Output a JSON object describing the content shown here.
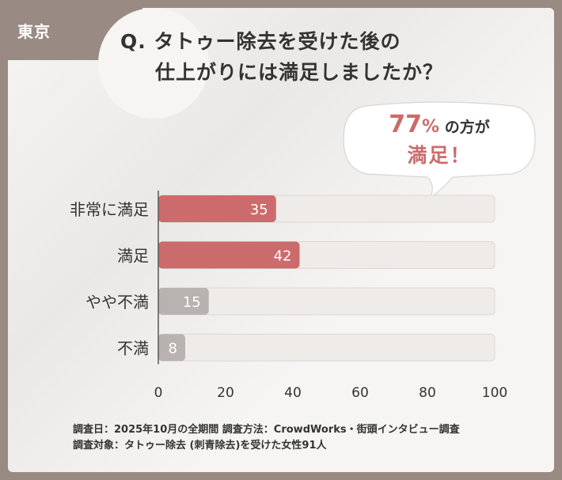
{
  "header": {
    "region": "東京",
    "title_line1": "Q. タトゥー除去を受けた後の",
    "title_line2": "仕上がりには満足しましたか？"
  },
  "callout": {
    "percent": "77",
    "percent_sign": "%",
    "suffix": "の方が",
    "line2": "満足！"
  },
  "colors": {
    "satisfied_bar": "#cc6b6b",
    "unsatisfied_bar": "#b8b3b1",
    "track": "#efebe9",
    "accent_text": "#cc6b6b"
  },
  "chart_data": {
    "type": "bar",
    "orientation": "horizontal",
    "categories": [
      "非常に満足",
      "満足",
      "やや不満",
      "不満"
    ],
    "values": [
      35,
      42,
      15,
      8
    ],
    "bar_colors": [
      "#cc6b6b",
      "#cc6b6b",
      "#b8b3b1",
      "#b8b3b1"
    ],
    "xlim": [
      0,
      100
    ],
    "xticks": [
      "0",
      "20",
      "40",
      "60",
      "80",
      "100"
    ],
    "title": "",
    "xlabel": "",
    "ylabel": "",
    "grid": false
  },
  "footnote": {
    "line1": "調査日：2025年10月の全期間 調査方法：CrowdWorks・街頭インタビュー調査",
    "line2": "調査対象：タトゥー除去 (刺青除去)を受けた女性91人"
  }
}
